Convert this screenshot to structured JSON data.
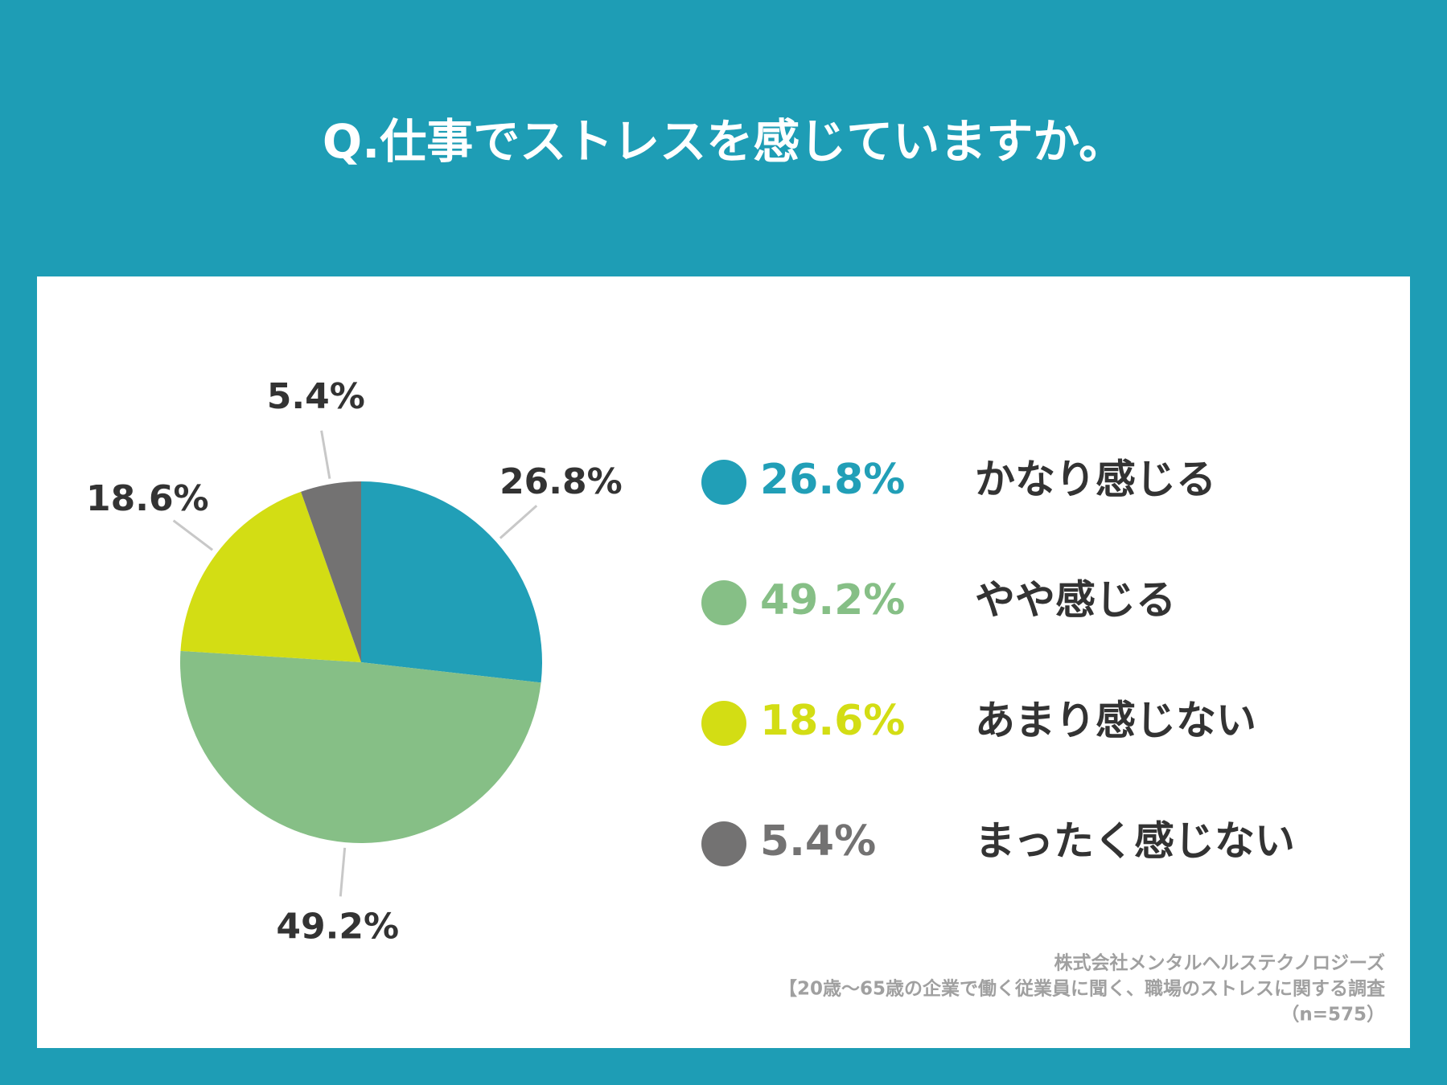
{
  "chart_data": {
    "type": "pie",
    "title": "Q.仕事でストレスを感じていますか。",
    "categories": [
      "かなり感じる",
      "やや感じる",
      "あまり感じない",
      "まったく感じない"
    ],
    "values": [
      26.8,
      49.2,
      18.6,
      5.4
    ],
    "value_labels": [
      "26.8%",
      "49.2%",
      "18.6%",
      "5.4%"
    ],
    "colors": [
      "#219fb7",
      "#86bf86",
      "#d3dd14",
      "#737272"
    ],
    "source": [
      "株式会社メンタルヘルステクノロジーズ",
      "【20歳～65歳の企業で働く従業員に聞く、職場のストレスに関する調査",
      "（n=575）"
    ]
  }
}
